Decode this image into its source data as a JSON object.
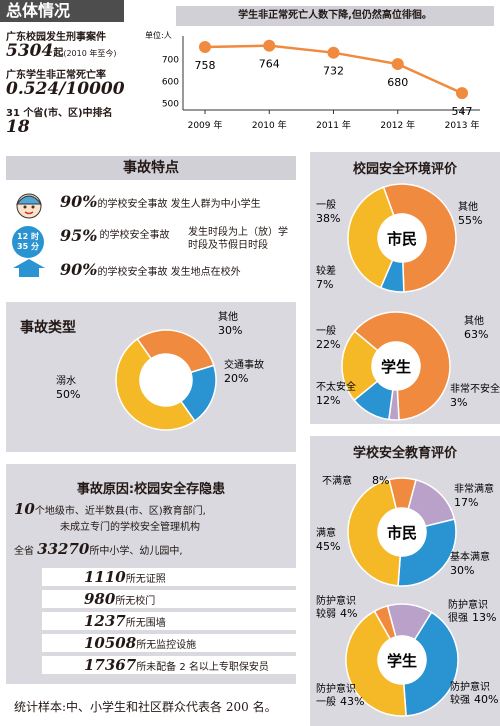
{
  "overview": {
    "title": "总体情况",
    "cases_label": "广东校园发生刑事案件",
    "cases_value": "5304",
    "cases_unit": "起",
    "cases_note": "(2010 年至今)",
    "rate_label": "广东学生非正常死亡率",
    "rate_value": "0.524/10000",
    "rank_label": "31 个省(市、区)中排名",
    "rank_value": "18"
  },
  "line_chart": {
    "title": "学生非正常死亡人数下降,但仍然高位徘徊。",
    "unit_label": "单位:人"
  },
  "accidents": {
    "title": "事故特点",
    "items": [
      {
        "pct": "90%",
        "label": "的学校安全事故",
        "desc": "发生人群为中小学生",
        "icon": "child-face-icon"
      },
      {
        "pct": "95%",
        "label": "的学校安全事故",
        "desc": "发生时段为上（放）学时段及节假日时段",
        "icon": "clock-icon"
      },
      {
        "pct": "90%",
        "label": "的学校安全事故",
        "desc": "发生地点在校外",
        "icon": "house-arrow-icon"
      }
    ],
    "clock_text_1": "12 时",
    "clock_text_2": "35 分"
  },
  "types": {
    "title": "事故类型"
  },
  "causes": {
    "title": "事故原因:校园安全存隐患",
    "line1_num": "10",
    "line1_text": "个地级市、近半数县(市、区)教育部门,",
    "line2_text": "未成立专门的学校安全管理机构",
    "line3_prefix": "全省",
    "line3_num": "33270",
    "line3_text": "所中小学、幼儿园中,",
    "items": [
      {
        "num": "1110",
        "text": "所无证照"
      },
      {
        "num": "980",
        "text": "所无校门"
      },
      {
        "num": "1237",
        "text": "所无围墙"
      },
      {
        "num": "10508",
        "text": "所无监控设施"
      },
      {
        "num": "17367",
        "text": "所未配备 2 名以上专职保安员"
      }
    ],
    "footnote": "统计样本:中、小学生和社区群众代表各 200 名。"
  },
  "env_eval": {
    "title": "校园安全环境评价"
  },
  "edu_eval": {
    "title": "学校安全教育评价"
  },
  "colors": {
    "orange": "#f08a3e",
    "yellow": "#f5b827",
    "blue": "#2a94d2",
    "purple": "#b9a1c9",
    "gray_band": "#d0d0d6",
    "dark": "#4d4d4d"
  },
  "chart_data": [
    {
      "type": "line",
      "title": "学生非正常死亡人数下降,但仍然高位徘徊。",
      "ylabel": "单位:人",
      "x": [
        "2009 年",
        "2010 年",
        "2011 年",
        "2012 年",
        "2013 年"
      ],
      "values": [
        758,
        764,
        732,
        680,
        547
      ],
      "yticks": [
        500,
        600,
        700
      ],
      "ylim": [
        470,
        790
      ]
    },
    {
      "type": "pie",
      "title": "事故类型",
      "slices": [
        {
          "label": "其他",
          "value": 30,
          "text": "30%",
          "color": "#f08a3e"
        },
        {
          "label": "交通事故",
          "value": 20,
          "text": "20%",
          "color": "#2a94d2"
        },
        {
          "label": "溺水",
          "value": 50,
          "text": "50%",
          "color": "#f5b827"
        }
      ]
    },
    {
      "type": "pie",
      "title": "校园安全环境评价",
      "center": "市民",
      "slices": [
        {
          "label": "其他",
          "value": 55,
          "text": "55%",
          "color": "#f08a3e"
        },
        {
          "label": "较差",
          "value": 7,
          "text": "7%",
          "color": "#2a94d2"
        },
        {
          "label": "一般",
          "value": 38,
          "text": "38%",
          "color": "#f5b827"
        }
      ]
    },
    {
      "type": "pie",
      "title": "校园安全环境评价",
      "center": "学生",
      "slices": [
        {
          "label": "其他",
          "value": 63,
          "text": "63%",
          "color": "#f08a3e"
        },
        {
          "label": "非常不安全",
          "value": 3,
          "text": "3%",
          "color": "#b9a1c9"
        },
        {
          "label": "不太安全",
          "value": 12,
          "text": "12%",
          "color": "#2a94d2"
        },
        {
          "label": "一般",
          "value": 22,
          "text": "22%",
          "color": "#f5b827"
        }
      ]
    },
    {
      "type": "pie",
      "title": "学校安全教育评价",
      "center": "市民",
      "slices": [
        {
          "label": "非常满意",
          "value": 17,
          "text": "17%",
          "color": "#b9a1c9"
        },
        {
          "label": "基本满意",
          "value": 30,
          "text": "30%",
          "color": "#2a94d2"
        },
        {
          "label": "满意",
          "value": 45,
          "text": "45%",
          "color": "#f5b827"
        },
        {
          "label": "不满意",
          "value": 8,
          "text": "8%",
          "color": "#f08a3e"
        }
      ]
    },
    {
      "type": "pie",
      "title": "学校安全教育评价",
      "center": "学生",
      "slices": [
        {
          "label": "防护意识很强",
          "value": 13,
          "text": "13%",
          "color": "#b9a1c9"
        },
        {
          "label": "防护意识较强",
          "value": 40,
          "text": "40%",
          "color": "#2a94d2"
        },
        {
          "label": "防护意识一般",
          "value": 43,
          "text": "43%",
          "color": "#f5b827"
        },
        {
          "label": "防护意识较弱",
          "value": 4,
          "text": "4%",
          "color": "#f08a3e"
        }
      ]
    }
  ]
}
